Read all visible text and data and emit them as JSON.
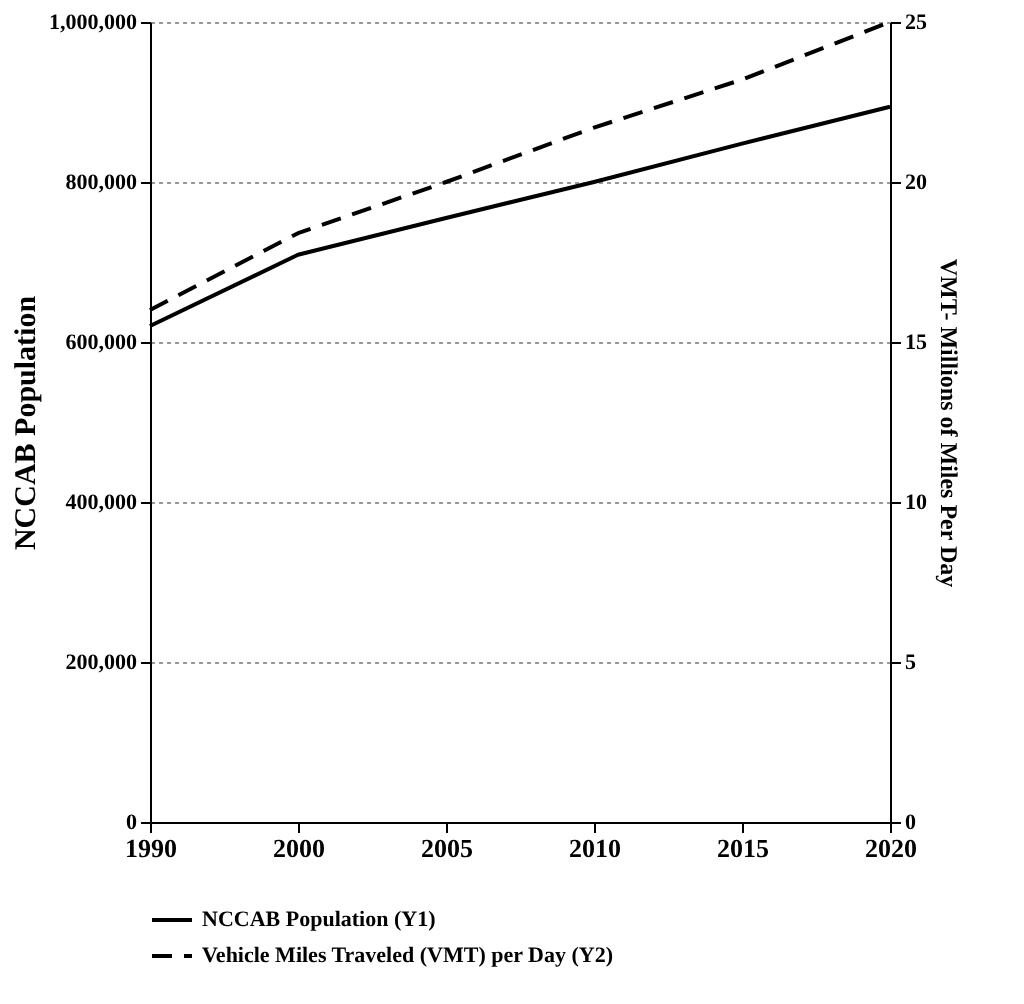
{
  "chart_data": {
    "type": "line",
    "categories": [
      "1990",
      "2000",
      "2005",
      "2010",
      "2015",
      "2020"
    ],
    "ylabel": "NCCAB Population",
    "y2label": "VMT- Millions of Miles Per Day",
    "ylim": [
      0,
      1000000
    ],
    "yticks": [
      0,
      {
        "value": 200000,
        "label": "200,000"
      },
      {
        "value": 400000,
        "label": "400,000"
      },
      {
        "value": 600000,
        "label": "600,000"
      },
      {
        "value": 800000,
        "label": "800,000"
      },
      {
        "value": 1000000,
        "label": "1,000,000"
      }
    ],
    "y2lim": [
      0,
      25
    ],
    "y2ticks": [
      0,
      5,
      10,
      15,
      20,
      25
    ],
    "grid": "y",
    "legend": "bottom",
    "marker": "none",
    "series": [
      {
        "name": "NCCAB Population (Y1)",
        "color": "#000000",
        "line_style": "solid",
        "values": [
          620000,
          709000,
          755000,
          800000,
          848000,
          894000
        ]
      },
      {
        "name": "Vehicle Miles Traveled (VMT) per Day (Y2)",
        "color": "#000000",
        "line_style": "dashed",
        "axis": "y2",
        "values": [
          16.0,
          18.4,
          20.0,
          21.7,
          23.2,
          25.0
        ]
      }
    ]
  }
}
